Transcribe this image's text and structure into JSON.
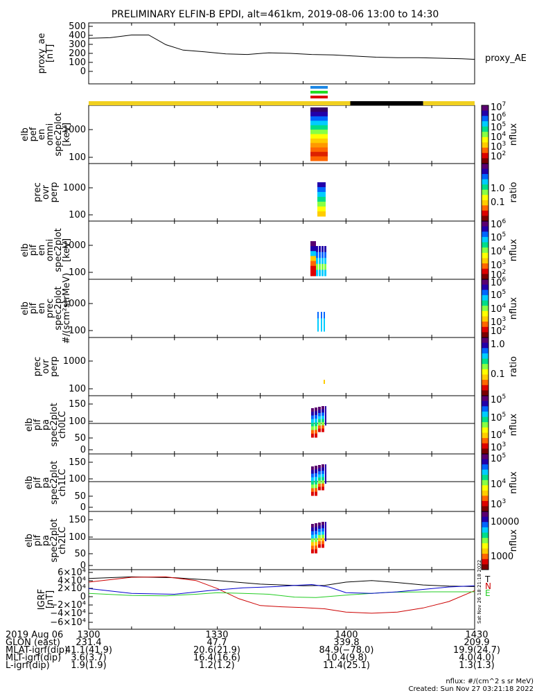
{
  "title": "PRELIMINARY ELFIN-B EPDI, alt=461km, 2019-08-06 13:00 to 14:30",
  "panels": [
    {
      "ylabel": [
        "proxy_ae",
        "[nT]"
      ],
      "ticks": [
        "500",
        "400",
        "300",
        "200",
        "100",
        "0"
      ],
      "right_label": "proxy_AE"
    },
    {
      "ylabel": [
        "elb",
        "pef",
        "en",
        "omni",
        "spec2plot",
        "[keV]"
      ],
      "ticks": [
        "1000",
        "100"
      ],
      "colorbar": {
        "ticks": [
          "10",
          "10",
          "10",
          "10",
          "10",
          "10"
        ],
        "exps": [
          "7",
          "6",
          "5",
          "4",
          "3",
          "2"
        ],
        "label": "nflux"
      }
    },
    {
      "ylabel": [
        "prec",
        "ovr",
        "perp"
      ],
      "ticks": [
        "1000",
        "100"
      ],
      "colorbar": {
        "ticks": [
          "1.0",
          "0.1"
        ],
        "label": "ratio"
      }
    },
    {
      "ylabel": [
        "elb",
        "pif",
        "en",
        "omni",
        "spec2plot",
        "[keV]"
      ],
      "ticks": [
        "1000",
        "100"
      ],
      "colorbar": {
        "ticks": [
          "10",
          "10",
          "10",
          "10",
          "10"
        ],
        "exps": [
          "6",
          "5",
          "4",
          "3",
          "2"
        ],
        "label": "nflux"
      }
    },
    {
      "ylabel": [
        "elb",
        "pif",
        "en",
        "prec",
        "spec2plot",
        "#/(scm²strMeV)"
      ],
      "ticks": [
        "1000",
        "100"
      ],
      "colorbar": {
        "ticks": [
          "10",
          "10",
          "10",
          "10",
          "10"
        ],
        "exps": [
          "6",
          "5",
          "4",
          "3",
          "2"
        ],
        "label": "nflux"
      }
    },
    {
      "ylabel": [
        "prec",
        "ovr",
        "perp"
      ],
      "ticks": [
        "1000",
        "100"
      ],
      "colorbar": {
        "ticks": [
          "1.0",
          "0.1"
        ],
        "label": "ratio"
      }
    },
    {
      "ylabel": [
        "elb",
        "pif",
        "pa",
        "spec2plot",
        "ch0LC"
      ],
      "ticks": [
        "150",
        "100",
        "50",
        "0"
      ],
      "colorbar": {
        "ticks": [
          "10",
          "10",
          "10",
          "10"
        ],
        "exps": [
          "5",
          "5",
          "4",
          "3"
        ],
        "label": "nflux"
      }
    },
    {
      "ylabel": [
        "elb",
        "pif",
        "pa",
        "spec2plot",
        "ch1LC"
      ],
      "ticks": [
        "150",
        "100",
        "50",
        "0"
      ],
      "colorbar": {
        "ticks": [
          "10",
          "10",
          "10"
        ],
        "exps": [
          "5",
          "4",
          "3"
        ],
        "label": "nflux"
      }
    },
    {
      "ylabel": [
        "elb",
        "pif",
        "pa",
        "spec2plot",
        "ch2LC"
      ],
      "ticks": [
        "150",
        "100",
        "50",
        "0"
      ],
      "colorbar": {
        "ticks": [
          "10000",
          "1000"
        ],
        "label": "nflux"
      }
    },
    {
      "ylabel": [
        "IGRF",
        "[nT]"
      ],
      "ticks": [
        "6×10⁴",
        "4×10⁴",
        "2×10⁴",
        "0",
        "−2×10⁴",
        "−4×10⁴",
        "−6×10⁴"
      ],
      "legend": [
        "T",
        "N",
        "E"
      ],
      "side_text": "Sat Nov 26 18:21:18 2022"
    }
  ],
  "footer": {
    "rows": [
      {
        "label": "2019 Aug 06",
        "values": [
          "1300",
          "1330",
          "1400",
          "1430"
        ]
      },
      {
        "label": "GLON (east)",
        "values": [
          "231.4",
          "47.7",
          "339.8",
          "209.9"
        ]
      },
      {
        "label": "MLAT-igrf(dip)",
        "values": [
          "41.1(41.9)",
          "20.6(21.9)",
          "84.9(−78.0)",
          "19.9(24.7)"
        ]
      },
      {
        "label": "MLT-igrf(dip)",
        "values": [
          "3.6(3.7)",
          "16.4(16.6)",
          "10.4(9.8)",
          "4.0(4.0)"
        ]
      },
      {
        "label": "L-igrf(dip)",
        "values": [
          "1.9(1.9)",
          "1.2(1.2)",
          "11.4(25.1)",
          "1.3(1.3)"
        ]
      }
    ],
    "note1": "nflux: #/(cm^2 s sr MeV)",
    "note2": "Created: Sun Nov 27 03:21:18 2022"
  },
  "colors": {
    "sunlit": "#f0d020",
    "shadow": "#000000",
    "T": "#000000",
    "N": "#cc0000",
    "E": "#22cc22",
    "blue": "#0000cc"
  },
  "chart_data": [
    {
      "type": "line",
      "series": [
        {
          "name": "proxy_AE",
          "x": [
            0,
            5,
            10,
            14,
            18,
            22,
            27,
            32,
            37,
            42,
            47,
            52,
            57,
            62,
            67,
            72,
            77,
            82,
            87,
            90
          ],
          "values": [
            390,
            395,
            420,
            420,
            330,
            280,
            265,
            245,
            240,
            255,
            250,
            240,
            235,
            225,
            215,
            210,
            210,
            205,
            200,
            195
          ]
        }
      ],
      "xlim": [
        0,
        90
      ],
      "ylim": [
        0,
        500
      ]
    },
    {
      "type": "line",
      "series": [
        {
          "name": "T",
          "x": [
            0,
            10,
            20,
            30,
            40,
            50,
            55,
            60,
            66,
            72,
            78,
            84,
            90
          ],
          "values": [
            45000,
            49000,
            47000,
            40000,
            31000,
            27000,
            28000,
            36000,
            40000,
            35000,
            29000,
            26000,
            25000
          ]
        },
        {
          "name": "N",
          "x": [
            0,
            10,
            18,
            25,
            30,
            35,
            40,
            45,
            50,
            55,
            60,
            66,
            72,
            78,
            84,
            90
          ],
          "values": [
            36000,
            48000,
            49000,
            40000,
            20000,
            -5000,
            -22000,
            -25000,
            -27000,
            -30000,
            -38000,
            -41000,
            -38000,
            -28000,
            -12000,
            15000
          ]
        },
        {
          "name": "E",
          "x": [
            0,
            10,
            18,
            25,
            30,
            36,
            42,
            48,
            53,
            60,
            70,
            80,
            90
          ],
          "values": [
            8000,
            3000,
            2000,
            6000,
            10000,
            8000,
            6000,
            -1000,
            -2000,
            4000,
            11000,
            12000,
            12000
          ]
        },
        {
          "name": "",
          "x": [
            0,
            10,
            20,
            28,
            36,
            44,
            48,
            52,
            56,
            60,
            66,
            72,
            78,
            84,
            90
          ],
          "values": [
            20000,
            8000,
            6000,
            15000,
            22000,
            25000,
            28000,
            30000,
            24000,
            10000,
            8000,
            12000,
            18000,
            24000,
            27000
          ]
        }
      ],
      "xlim": [
        0,
        90
      ],
      "ylim": [
        -60000,
        60000
      ]
    }
  ]
}
